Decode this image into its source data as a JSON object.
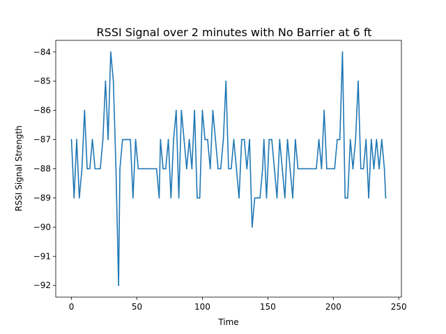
{
  "chart_data": {
    "type": "line",
    "title": "RSSI Signal over 2 minutes with No Barrier at 6 ft",
    "xlabel": "Time",
    "ylabel": "RSSI Signal Strength",
    "xlim": [
      -12,
      252
    ],
    "ylim": [
      -92.4,
      -83.6
    ],
    "x_ticks": [
      0,
      50,
      100,
      150,
      200,
      250
    ],
    "y_ticks": [
      -92,
      -91,
      -90,
      -89,
      -88,
      -87,
      -86,
      -85,
      -84
    ],
    "grid": false,
    "legend": "none",
    "line_color": "#1f77b4",
    "series": [
      {
        "x": [
          0,
          2,
          4,
          6,
          8,
          10,
          12,
          14,
          16,
          18,
          20,
          22,
          24,
          26,
          28,
          30,
          32,
          34,
          36,
          37,
          39,
          41,
          43,
          45,
          47,
          49,
          51,
          53,
          55,
          57,
          59,
          61,
          63,
          65,
          67,
          68,
          70,
          72,
          74,
          76,
          78,
          80,
          82,
          84,
          86,
          88,
          90,
          92,
          94,
          96,
          98,
          100,
          102,
          104,
          106,
          108,
          110,
          112,
          114,
          116,
          118,
          120,
          122,
          124,
          126,
          128,
          130,
          132,
          134,
          136,
          138,
          140,
          142,
          144,
          146,
          147,
          149,
          151,
          153,
          155,
          157,
          159,
          161,
          163,
          165,
          167,
          169,
          171,
          173,
          175,
          177,
          179,
          181,
          183,
          185,
          187,
          189,
          191,
          193,
          195,
          197,
          199,
          201,
          203,
          205,
          207,
          209,
          211,
          213,
          215,
          217,
          219,
          221,
          223,
          225,
          227,
          229,
          231,
          233,
          235,
          237,
          239,
          240
        ],
        "y": [
          -87,
          -89,
          -87,
          -89,
          -88,
          -86,
          -88,
          -88,
          -87,
          -88,
          -88,
          -88,
          -87,
          -85,
          -87,
          -84,
          -85,
          -88,
          -92,
          -88,
          -87,
          -87,
          -87,
          -87,
          -89,
          -87,
          -88,
          -88,
          -88,
          -88,
          -88,
          -88,
          -88,
          -88,
          -89,
          -87,
          -88,
          -88,
          -87,
          -89,
          -87,
          -86,
          -89,
          -86,
          -87,
          -88,
          -87,
          -88,
          -86,
          -89,
          -89,
          -86,
          -87,
          -87,
          -88,
          -86,
          -87,
          -88,
          -88,
          -87,
          -85,
          -88,
          -88,
          -87,
          -88,
          -89,
          -87,
          -87,
          -88,
          -87,
          -90,
          -89,
          -89,
          -89,
          -88,
          -87,
          -89,
          -87,
          -87,
          -88,
          -89,
          -87,
          -88,
          -89,
          -87,
          -88,
          -89,
          -87,
          -88,
          -88,
          -88,
          -88,
          -88,
          -88,
          -88,
          -88,
          -87,
          -88,
          -86,
          -88,
          -88,
          -88,
          -88,
          -87,
          -87,
          -84,
          -89,
          -89,
          -87,
          -88,
          -87,
          -85,
          -88,
          -88,
          -87,
          -89,
          -87,
          -88,
          -87,
          -88,
          -87,
          -88,
          -89
        ]
      }
    ]
  }
}
